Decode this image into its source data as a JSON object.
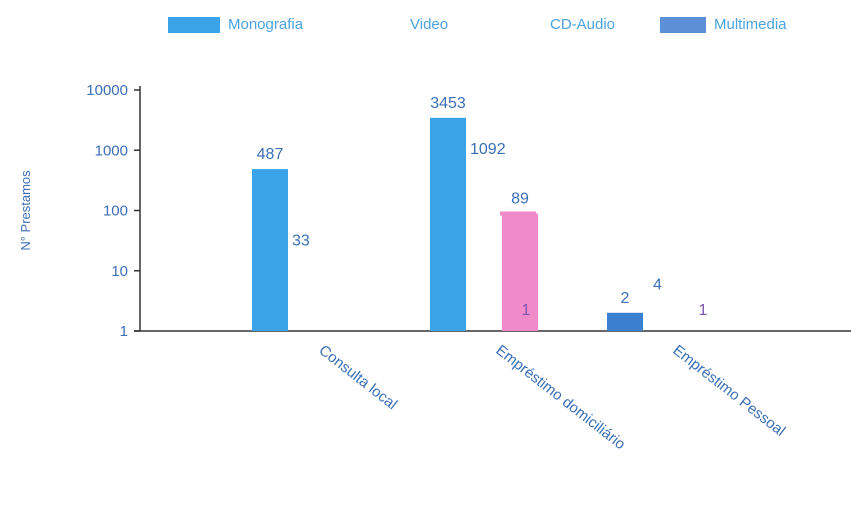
{
  "chart_data": {
    "type": "bar",
    "scale": "log",
    "ylabel": "N° Prestamos",
    "xlabel": "",
    "ylim": [
      1,
      10000
    ],
    "yticks": [
      1,
      10,
      100,
      1000,
      10000
    ],
    "ytick_labels": [
      "1",
      "10",
      "100",
      "1000",
      "10000"
    ],
    "categories": [
      "Consulta local",
      "Empréstimo domiciliário",
      "Empréstimo Pessoal"
    ],
    "legend_position": "top",
    "grid": false,
    "series": [
      {
        "name": "Monografia",
        "color": "#3ba4e8",
        "values": [
          487,
          3453,
          2
        ]
      },
      {
        "name": "Video",
        "color": "#6fb8ea",
        "values": [
          33,
          1092,
          4
        ]
      },
      {
        "name": "CD-Audio",
        "color": "#f08ac8",
        "values": [
          null,
          89,
          null
        ]
      },
      {
        "name": "Multimedia",
        "color": "#5c8fd6",
        "values": [
          null,
          1,
          1
        ]
      }
    ],
    "data_labels": [
      "487",
      "33",
      "3453",
      "1092",
      "89",
      "1",
      "2",
      "4",
      "1"
    ]
  }
}
